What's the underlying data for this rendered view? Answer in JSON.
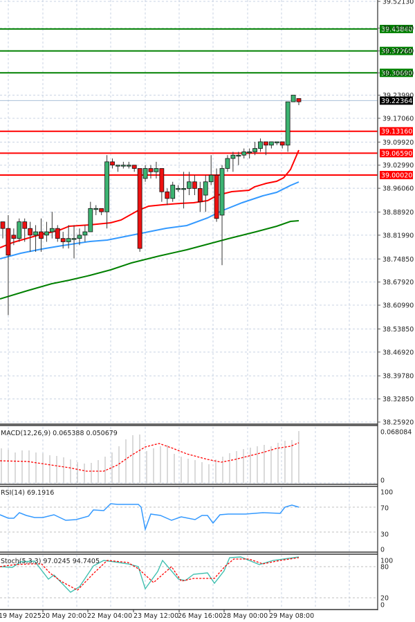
{
  "chart_data": {
    "type": "candlestick",
    "title": "",
    "price_axis": {
      "ticks": [
        39.5213,
        39.4409,
        39.3726,
        39.3069,
        39.2399,
        39.1706,
        39.0992,
        39.0299,
        38.9606,
        38.8892,
        38.8199,
        38.7485,
        38.6792,
        38.6099,
        38.5385,
        38.4692,
        38.3978,
        38.3285,
        38.2592
      ],
      "tick_labels": [
        "39.52130",
        "39.44090",
        "39.37260",
        "39.30690",
        "39.23990",
        "39.17060",
        "39.09920",
        "39.02990",
        "38.96060",
        "38.88920",
        "38.81990",
        "38.74850",
        "38.67920",
        "38.60990",
        "38.53850",
        "38.46920",
        "38.39780",
        "38.32850",
        "38.25920"
      ],
      "range": [
        38.2592,
        39.5213
      ]
    },
    "current_price": {
      "value": "39.22364",
      "color": "#000000"
    },
    "horizontal_levels": [
      {
        "label": "39.43840",
        "value": 39.4384,
        "color": "#008000"
      },
      {
        "label": "39.37260",
        "value": 39.3726,
        "color": "#008000"
      },
      {
        "label": "39.30690",
        "value": 39.3069,
        "color": "#008000"
      },
      {
        "label": "39.13160",
        "value": 39.1316,
        "color": "#ff0000"
      },
      {
        "label": "39.06590",
        "value": 39.0659,
        "color": "#ff0000"
      },
      {
        "label": "39.00020",
        "value": 39.0002,
        "color": "#ff0000"
      }
    ],
    "x_axis": {
      "tick_labels": [
        "19 May 2025",
        "20 May 20:00",
        "22 May 04:00",
        "23 May 12:00",
        "26 May 16:00",
        "28 May 00:00",
        "29 May 08:00"
      ]
    },
    "moving_averages": [
      {
        "name": "MA fast",
        "color": "#ff0000"
      },
      {
        "name": "MA medium",
        "color": "#3399ff"
      },
      {
        "name": "MA slow",
        "color": "#008000"
      }
    ],
    "candles": [
      [
        38.86,
        38.84,
        38.86,
        38.81
      ],
      [
        38.84,
        38.76,
        38.88,
        38.58
      ],
      [
        38.82,
        38.81,
        38.84,
        38.79
      ],
      [
        38.81,
        38.86,
        38.87,
        38.8
      ],
      [
        38.86,
        38.84,
        38.87,
        38.8
      ],
      [
        38.84,
        38.82,
        38.86,
        38.77
      ],
      [
        38.82,
        38.83,
        38.85,
        38.77
      ],
      [
        38.83,
        38.81,
        38.87,
        38.77
      ],
      [
        38.82,
        38.83,
        38.86,
        38.8
      ],
      [
        38.83,
        38.84,
        38.89,
        38.81
      ],
      [
        38.84,
        38.81,
        38.85,
        38.8
      ],
      [
        38.81,
        38.8,
        38.83,
        38.78
      ],
      [
        38.8,
        38.81,
        38.85,
        38.78
      ],
      [
        38.81,
        38.81,
        38.85,
        38.75
      ],
      [
        38.81,
        38.82,
        38.84,
        38.79
      ],
      [
        38.82,
        38.83,
        38.85,
        38.8
      ],
      [
        38.83,
        38.9,
        38.92,
        38.83
      ],
      [
        38.9,
        38.9,
        38.91,
        38.88
      ],
      [
        38.9,
        38.89,
        38.9,
        38.88
      ],
      [
        38.89,
        39.04,
        39.06,
        38.84
      ],
      [
        39.04,
        39.03,
        39.05,
        39.02
      ],
      [
        39.03,
        39.03,
        39.03,
        39.01
      ],
      [
        39.03,
        39.03,
        39.04,
        39.02
      ],
      [
        39.03,
        39.03,
        39.04,
        39.02
      ],
      [
        39.03,
        39.02,
        39.03,
        39.01
      ],
      [
        39.02,
        38.78,
        39.02,
        38.77
      ],
      [
        38.99,
        39.02,
        39.03,
        38.98
      ],
      [
        39.02,
        39.01,
        39.03,
        38.99
      ],
      [
        39.01,
        39.02,
        39.04,
        38.99
      ],
      [
        39.02,
        38.95,
        39.02,
        38.92
      ],
      [
        38.95,
        38.93,
        38.96,
        38.91
      ],
      [
        38.93,
        38.97,
        38.98,
        38.92
      ],
      [
        38.96,
        38.96,
        38.97,
        38.95
      ],
      [
        38.96,
        38.96,
        39.01,
        38.9
      ],
      [
        38.96,
        38.98,
        39.01,
        38.94
      ],
      [
        38.98,
        38.96,
        39.0,
        38.94
      ],
      [
        38.96,
        38.92,
        38.98,
        38.89
      ],
      [
        38.94,
        38.98,
        39.0,
        38.89
      ],
      [
        38.98,
        39.0,
        39.06,
        38.97
      ],
      [
        39.0,
        38.87,
        39.02,
        38.86
      ],
      [
        38.88,
        39.02,
        39.03,
        38.73
      ],
      [
        39.02,
        39.05,
        39.06,
        39.01
      ],
      [
        39.05,
        39.06,
        39.07,
        39.01
      ],
      [
        39.06,
        39.06,
        39.07,
        39.03
      ],
      [
        39.06,
        39.07,
        39.08,
        39.05
      ],
      [
        39.07,
        39.07,
        39.08,
        39.05
      ],
      [
        39.07,
        39.08,
        39.1,
        39.06
      ],
      [
        39.08,
        39.1,
        39.11,
        39.07
      ],
      [
        39.1,
        39.09,
        39.1,
        39.06
      ],
      [
        39.09,
        39.1,
        39.1,
        39.08
      ],
      [
        39.1,
        39.1,
        39.1,
        39.09
      ],
      [
        39.1,
        39.09,
        39.1,
        39.08
      ],
      [
        39.09,
        39.22,
        39.22,
        39.07
      ],
      [
        39.22,
        39.24,
        39.24,
        39.22
      ],
      [
        39.23,
        39.22,
        39.23,
        39.21
      ]
    ],
    "panels": [
      {
        "name": "MACD",
        "label": "MACD(12,26,9) 0.065388 0.050679",
        "axis_labels": [
          "0.068084",
          "0"
        ],
        "histogram_color": "#c0c0c0",
        "signal_color": "#ff0000"
      },
      {
        "name": "RSI",
        "label": "RSI(14) 69.1916",
        "axis_labels": [
          "100",
          "70",
          "30",
          "0"
        ],
        "line_color": "#3399ff",
        "levels": [
          70,
          30
        ]
      },
      {
        "name": "Stochastic",
        "label": "Stoch(5,3,3) 97.0245 94.7405",
        "axis_labels": [
          "100",
          "80",
          "20",
          "0"
        ],
        "main_color": "#40c0b0",
        "signal_color": "#ff0000",
        "levels": [
          80,
          20
        ]
      }
    ]
  }
}
